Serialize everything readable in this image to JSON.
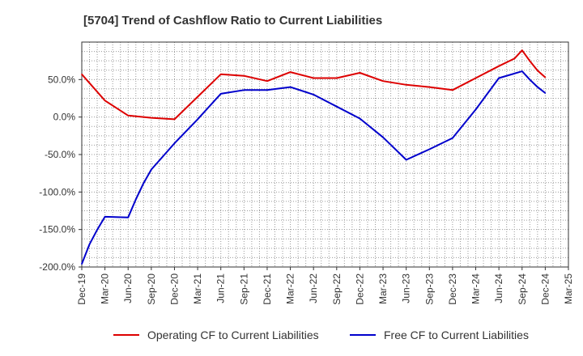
{
  "chart_data": {
    "type": "line",
    "title": "[5704]  Trend of Cashflow Ratio to Current Liabilities",
    "xlabel": "",
    "ylabel": "",
    "ylim": [
      -200,
      100
    ],
    "y_ticks": [
      50,
      0,
      -50,
      -100,
      -150,
      -200
    ],
    "y_tick_labels": [
      "50.0%",
      "0.0%",
      "-50.0%",
      "-100.0%",
      "-150.0%",
      "-200.0%"
    ],
    "x_tick_labels": [
      "Dec-19",
      "Mar-20",
      "Jun-20",
      "Sep-20",
      "Dec-20",
      "Mar-21",
      "Jun-21",
      "Sep-21",
      "Dec-21",
      "Mar-22",
      "Jun-22",
      "Sep-22",
      "Dec-22",
      "Mar-23",
      "Jun-23",
      "Sep-23",
      "Dec-23",
      "Mar-24",
      "Jun-24",
      "Sep-24",
      "Dec-24",
      "Mar-25"
    ],
    "grid": true,
    "legend_position": "bottom",
    "series": [
      {
        "name": "Operating CF to Current Liabilities",
        "color": "#dd0000",
        "points": [
          [
            0,
            57
          ],
          [
            1,
            22
          ],
          [
            2,
            2
          ],
          [
            3,
            -1
          ],
          [
            4,
            -3
          ],
          [
            5,
            27
          ],
          [
            6,
            57
          ],
          [
            7,
            55
          ],
          [
            8,
            48
          ],
          [
            9,
            60
          ],
          [
            10,
            52
          ],
          [
            11,
            52
          ],
          [
            12,
            59
          ],
          [
            13,
            48
          ],
          [
            14,
            43
          ],
          [
            15,
            40
          ],
          [
            16,
            36
          ],
          [
            17,
            52
          ],
          [
            18,
            68
          ],
          [
            18.67,
            78
          ],
          [
            19,
            89
          ],
          [
            19.33,
            75
          ],
          [
            19.67,
            62
          ],
          [
            20,
            53
          ]
        ]
      },
      {
        "name": "Free CF to Current Liabilities",
        "color": "#0000cc",
        "points": [
          [
            0,
            -196
          ],
          [
            0.33,
            -170
          ],
          [
            0.67,
            -150
          ],
          [
            1,
            -133
          ],
          [
            2,
            -134
          ],
          [
            2.33,
            -110
          ],
          [
            2.67,
            -88
          ],
          [
            3,
            -70
          ],
          [
            4,
            -35
          ],
          [
            5,
            -3
          ],
          [
            6,
            31
          ],
          [
            7,
            36
          ],
          [
            8,
            36
          ],
          [
            9,
            40
          ],
          [
            10,
            30
          ],
          [
            11,
            14
          ],
          [
            12,
            -2
          ],
          [
            13,
            -27
          ],
          [
            14,
            -57
          ],
          [
            15,
            -43
          ],
          [
            16,
            -28
          ],
          [
            17,
            10
          ],
          [
            18,
            52
          ],
          [
            19,
            61
          ],
          [
            19.33,
            50
          ],
          [
            19.67,
            40
          ],
          [
            20,
            32
          ]
        ]
      }
    ]
  }
}
